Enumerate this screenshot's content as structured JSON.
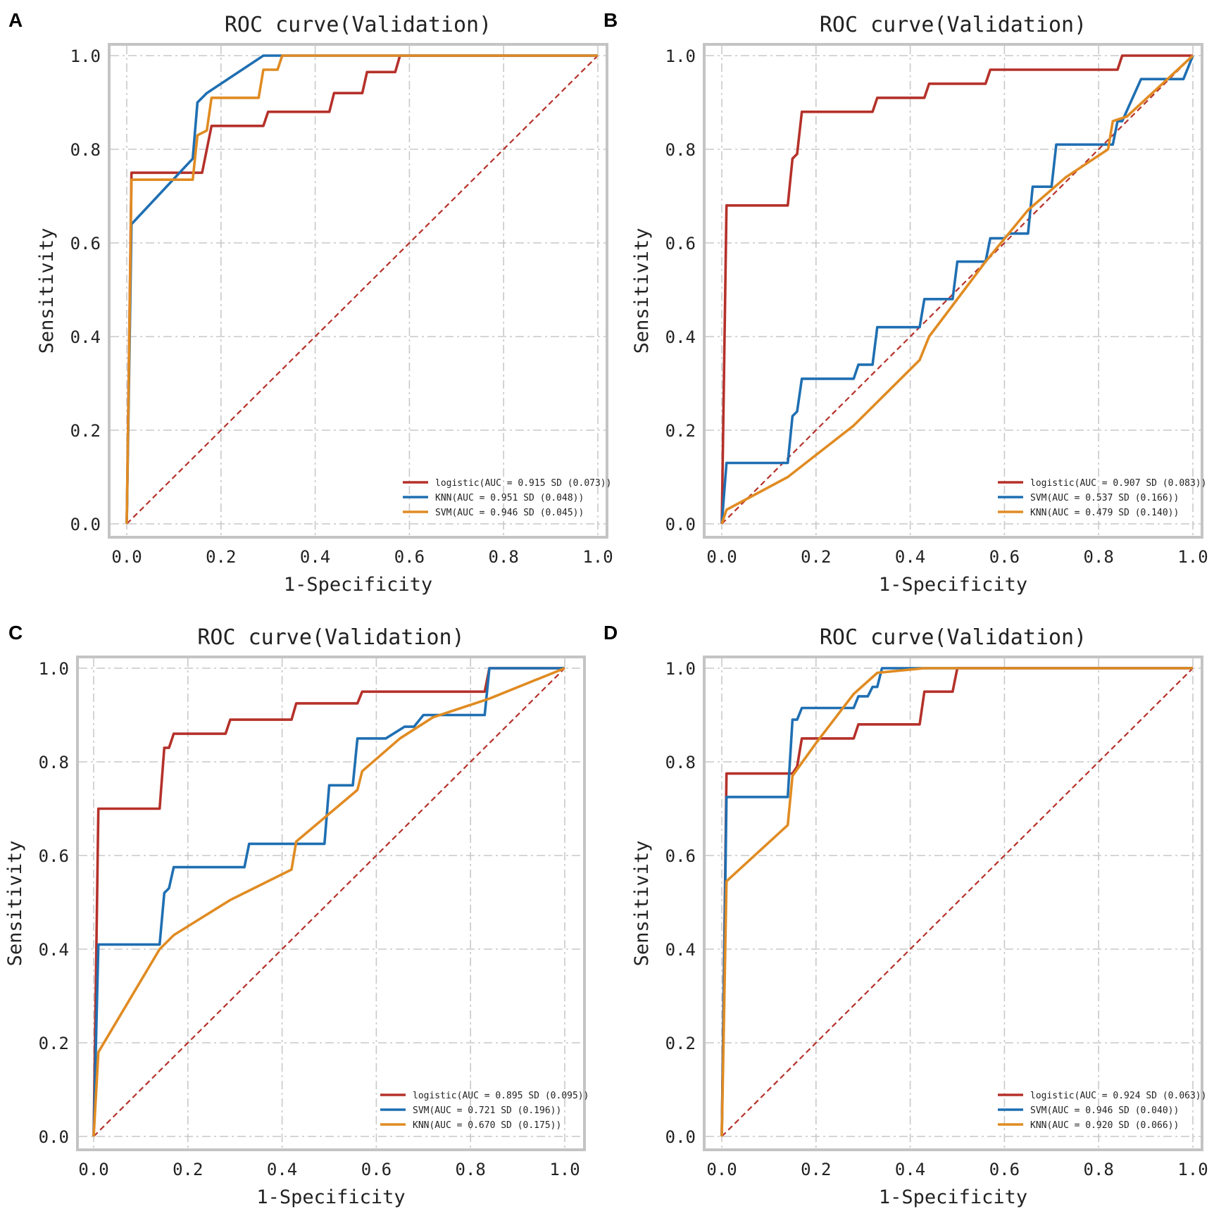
{
  "colors": {
    "logistic": "#b5312a",
    "KNN": "#1f6fb2",
    "SVM": "#e08b22",
    "diagonal": "#b5312a"
  },
  "chart_data": [
    {
      "panel": "A",
      "type": "line",
      "title": "ROC curve(Validation)",
      "xlabel": "1-Specificity",
      "ylabel": "Sensitivity",
      "xlim": [
        0,
        1
      ],
      "ylim": [
        0,
        1
      ],
      "xticks": [
        "0.0",
        "0.2",
        "0.4",
        "0.6",
        "0.8",
        "1.0"
      ],
      "yticks": [
        "0.0",
        "0.2",
        "0.4",
        "0.6",
        "0.8",
        "1.0"
      ],
      "legend_position": "lower-right",
      "series": [
        {
          "name": "logistic",
          "label": "logistic(AUC = 0.915 SD (0.073))",
          "color_key": "logistic",
          "points": [
            [
              0,
              0
            ],
            [
              0.01,
              0.75
            ],
            [
              0.16,
              0.75
            ],
            [
              0.18,
              0.85
            ],
            [
              0.29,
              0.85
            ],
            [
              0.3,
              0.88
            ],
            [
              0.43,
              0.88
            ],
            [
              0.44,
              0.92
            ],
            [
              0.5,
              0.92
            ],
            [
              0.51,
              0.965
            ],
            [
              0.57,
              0.965
            ],
            [
              0.58,
              1.0
            ],
            [
              1.0,
              1.0
            ]
          ]
        },
        {
          "name": "KNN",
          "label": "KNN(AUC = 0.951 SD (0.048))",
          "color_key": "KNN",
          "points": [
            [
              0,
              0
            ],
            [
              0.01,
              0.64
            ],
            [
              0.14,
              0.78
            ],
            [
              0.15,
              0.9
            ],
            [
              0.17,
              0.92
            ],
            [
              0.29,
              1.0
            ],
            [
              1.0,
              1.0
            ]
          ]
        },
        {
          "name": "SVM",
          "label": "SVM(AUC = 0.946 SD (0.045))",
          "color_key": "SVM",
          "points": [
            [
              0,
              0
            ],
            [
              0.01,
              0.735
            ],
            [
              0.14,
              0.735
            ],
            [
              0.15,
              0.83
            ],
            [
              0.17,
              0.84
            ],
            [
              0.18,
              0.91
            ],
            [
              0.28,
              0.91
            ],
            [
              0.29,
              0.97
            ],
            [
              0.32,
              0.97
            ],
            [
              0.33,
              1.0
            ],
            [
              1.0,
              1.0
            ]
          ]
        }
      ]
    },
    {
      "panel": "B",
      "type": "line",
      "title": "ROC curve(Validation)",
      "xlabel": "1-Specificity",
      "ylabel": "Sensitivity",
      "xlim": [
        0,
        1
      ],
      "ylim": [
        0,
        1
      ],
      "xticks": [
        "0.0",
        "0.2",
        "0.4",
        "0.6",
        "0.8",
        "1.0"
      ],
      "yticks": [
        "0.0",
        "0.2",
        "0.4",
        "0.6",
        "0.8",
        "1.0"
      ],
      "legend_position": "lower-right",
      "series": [
        {
          "name": "logistic",
          "label": "logistic(AUC = 0.907 SD (0.083))",
          "color_key": "logistic",
          "points": [
            [
              0,
              0
            ],
            [
              0.01,
              0.68
            ],
            [
              0.14,
              0.68
            ],
            [
              0.15,
              0.78
            ],
            [
              0.16,
              0.79
            ],
            [
              0.17,
              0.88
            ],
            [
              0.32,
              0.88
            ],
            [
              0.33,
              0.91
            ],
            [
              0.43,
              0.91
            ],
            [
              0.44,
              0.94
            ],
            [
              0.56,
              0.94
            ],
            [
              0.57,
              0.97
            ],
            [
              0.84,
              0.97
            ],
            [
              0.85,
              1.0
            ],
            [
              1.0,
              1.0
            ]
          ]
        },
        {
          "name": "SVM",
          "label": "SVM(AUC = 0.537 SD (0.166))",
          "color_key": "KNN",
          "points": [
            [
              0,
              0
            ],
            [
              0.01,
              0.13
            ],
            [
              0.14,
              0.13
            ],
            [
              0.15,
              0.23
            ],
            [
              0.16,
              0.24
            ],
            [
              0.17,
              0.31
            ],
            [
              0.28,
              0.31
            ],
            [
              0.29,
              0.34
            ],
            [
              0.32,
              0.34
            ],
            [
              0.33,
              0.42
            ],
            [
              0.42,
              0.42
            ],
            [
              0.43,
              0.48
            ],
            [
              0.49,
              0.48
            ],
            [
              0.5,
              0.56
            ],
            [
              0.56,
              0.56
            ],
            [
              0.57,
              0.61
            ],
            [
              0.6,
              0.61
            ],
            [
              0.61,
              0.62
            ],
            [
              0.65,
              0.62
            ],
            [
              0.66,
              0.72
            ],
            [
              0.7,
              0.72
            ],
            [
              0.71,
              0.81
            ],
            [
              0.83,
              0.81
            ],
            [
              0.84,
              0.86
            ],
            [
              0.85,
              0.86
            ],
            [
              0.89,
              0.95
            ],
            [
              0.98,
              0.95
            ],
            [
              1.0,
              1.0
            ]
          ]
        },
        {
          "name": "KNN",
          "label": "KNN(AUC = 0.479 SD (0.140))",
          "color_key": "SVM",
          "points": [
            [
              0,
              0
            ],
            [
              0.01,
              0.03
            ],
            [
              0.14,
              0.1
            ],
            [
              0.28,
              0.21
            ],
            [
              0.42,
              0.35
            ],
            [
              0.44,
              0.4
            ],
            [
              0.56,
              0.56
            ],
            [
              0.65,
              0.67
            ],
            [
              0.73,
              0.74
            ],
            [
              0.82,
              0.8
            ],
            [
              0.83,
              0.86
            ],
            [
              0.86,
              0.87
            ],
            [
              1.0,
              1.0
            ]
          ]
        }
      ]
    },
    {
      "panel": "C",
      "type": "line",
      "title": "ROC curve(Validation)",
      "xlabel": "1-Specificity",
      "ylabel": "Sensitivity",
      "xlim": [
        0,
        1
      ],
      "ylim": [
        0,
        1
      ],
      "xticks": [
        "0.0",
        "0.2",
        "0.4",
        "0.6",
        "0.8",
        "1.0"
      ],
      "yticks": [
        "0.0",
        "0.2",
        "0.4",
        "0.6",
        "0.8",
        "1.0"
      ],
      "legend_position": "lower-right",
      "series": [
        {
          "name": "logistic",
          "label": "logistic(AUC = 0.895 SD (0.095))",
          "color_key": "logistic",
          "points": [
            [
              0,
              0
            ],
            [
              0.01,
              0.7
            ],
            [
              0.14,
              0.7
            ],
            [
              0.15,
              0.83
            ],
            [
              0.16,
              0.83
            ],
            [
              0.17,
              0.86
            ],
            [
              0.28,
              0.86
            ],
            [
              0.29,
              0.89
            ],
            [
              0.42,
              0.89
            ],
            [
              0.43,
              0.925
            ],
            [
              0.56,
              0.925
            ],
            [
              0.57,
              0.95
            ],
            [
              0.83,
              0.95
            ],
            [
              0.84,
              1.0
            ],
            [
              1.0,
              1.0
            ]
          ]
        },
        {
          "name": "SVM",
          "label": "SVM(AUC = 0.721 SD (0.196))",
          "color_key": "KNN",
          "points": [
            [
              0,
              0
            ],
            [
              0.01,
              0.41
            ],
            [
              0.14,
              0.41
            ],
            [
              0.15,
              0.52
            ],
            [
              0.16,
              0.53
            ],
            [
              0.17,
              0.575
            ],
            [
              0.32,
              0.575
            ],
            [
              0.33,
              0.625
            ],
            [
              0.49,
              0.625
            ],
            [
              0.5,
              0.75
            ],
            [
              0.55,
              0.75
            ],
            [
              0.56,
              0.85
            ],
            [
              0.62,
              0.85
            ],
            [
              0.66,
              0.875
            ],
            [
              0.68,
              0.875
            ],
            [
              0.7,
              0.9
            ],
            [
              0.83,
              0.9
            ],
            [
              0.84,
              1.0
            ],
            [
              1.0,
              1.0
            ]
          ]
        },
        {
          "name": "KNN",
          "label": "KNN(AUC = 0.670 SD (0.175))",
          "color_key": "SVM",
          "points": [
            [
              0,
              0
            ],
            [
              0.01,
              0.18
            ],
            [
              0.14,
              0.4
            ],
            [
              0.17,
              0.43
            ],
            [
              0.29,
              0.505
            ],
            [
              0.33,
              0.525
            ],
            [
              0.42,
              0.57
            ],
            [
              0.43,
              0.63
            ],
            [
              0.56,
              0.74
            ],
            [
              0.57,
              0.78
            ],
            [
              0.65,
              0.85
            ],
            [
              0.72,
              0.895
            ],
            [
              0.84,
              0.935
            ],
            [
              1.0,
              1.0
            ]
          ]
        }
      ]
    },
    {
      "panel": "D",
      "type": "line",
      "title": "ROC curve(Validation)",
      "xlabel": "1-Specificity",
      "ylabel": "Sensitivity",
      "xlim": [
        0,
        1
      ],
      "ylim": [
        0,
        1
      ],
      "xticks": [
        "0.0",
        "0.2",
        "0.4",
        "0.6",
        "0.8",
        "1.0"
      ],
      "yticks": [
        "0.0",
        "0.2",
        "0.4",
        "0.6",
        "0.8",
        "1.0"
      ],
      "legend_position": "lower-right",
      "series": [
        {
          "name": "logistic",
          "label": "logistic(AUC = 0.924 SD (0.063))",
          "color_key": "logistic",
          "points": [
            [
              0,
              0
            ],
            [
              0.01,
              0.775
            ],
            [
              0.14,
              0.775
            ],
            [
              0.15,
              0.775
            ],
            [
              0.16,
              0.79
            ],
            [
              0.17,
              0.85
            ],
            [
              0.28,
              0.85
            ],
            [
              0.29,
              0.88
            ],
            [
              0.42,
              0.88
            ],
            [
              0.43,
              0.95
            ],
            [
              0.49,
              0.95
            ],
            [
              0.5,
              1.0
            ],
            [
              1.0,
              1.0
            ]
          ]
        },
        {
          "name": "SVM",
          "label": "SVM(AUC = 0.946 SD (0.040))",
          "color_key": "KNN",
          "points": [
            [
              0,
              0
            ],
            [
              0.01,
              0.725
            ],
            [
              0.14,
              0.725
            ],
            [
              0.15,
              0.89
            ],
            [
              0.16,
              0.89
            ],
            [
              0.17,
              0.915
            ],
            [
              0.28,
              0.915
            ],
            [
              0.29,
              0.94
            ],
            [
              0.31,
              0.94
            ],
            [
              0.32,
              0.96
            ],
            [
              0.33,
              0.96
            ],
            [
              0.34,
              1.0
            ],
            [
              1.0,
              1.0
            ]
          ]
        },
        {
          "name": "KNN",
          "label": "KNN(AUC = 0.920 SD (0.066))",
          "color_key": "SVM",
          "points": [
            [
              0,
              0
            ],
            [
              0.01,
              0.545
            ],
            [
              0.14,
              0.665
            ],
            [
              0.15,
              0.77
            ],
            [
              0.2,
              0.84
            ],
            [
              0.28,
              0.945
            ],
            [
              0.33,
              0.99
            ],
            [
              0.43,
              1.0
            ],
            [
              1.0,
              1.0
            ]
          ]
        }
      ]
    }
  ]
}
